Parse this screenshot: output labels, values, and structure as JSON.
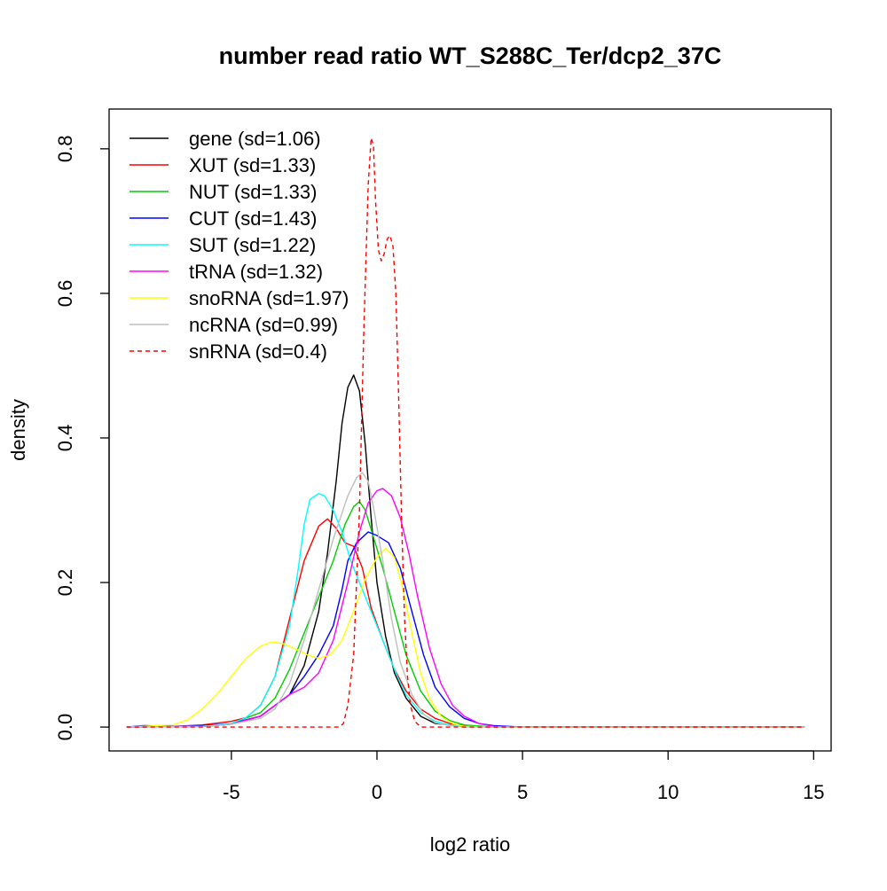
{
  "chart_data": {
    "type": "line",
    "title": "number read ratio WT_S288C_Ter/dcp2_37C",
    "xlabel": "log2 ratio",
    "ylabel": "density",
    "xlim": [
      -9.2,
      15.6
    ],
    "ylim": [
      -0.033,
      0.855
    ],
    "x_ticks": [
      -5,
      0,
      5,
      10,
      15
    ],
    "x_tick_labels": [
      "-5",
      "0",
      "5",
      "10",
      "15"
    ],
    "y_ticks": [
      0.0,
      0.2,
      0.4,
      0.6,
      0.8
    ],
    "y_tick_labels": [
      "0.0",
      "0.2",
      "0.4",
      "0.6",
      "0.8"
    ],
    "grid": false,
    "legend_position": "top-left",
    "series": [
      {
        "name": "gene (sd=1.06)",
        "color": "#000000",
        "dashed": false,
        "points": [
          [
            -8.6,
            0
          ],
          [
            -6.0,
            0.001
          ],
          [
            -5.0,
            0.004
          ],
          [
            -4.0,
            0.015
          ],
          [
            -3.0,
            0.045
          ],
          [
            -2.5,
            0.085
          ],
          [
            -2.0,
            0.16
          ],
          [
            -1.7,
            0.24
          ],
          [
            -1.4,
            0.34
          ],
          [
            -1.2,
            0.42
          ],
          [
            -1.0,
            0.47
          ],
          [
            -0.8,
            0.487
          ],
          [
            -0.6,
            0.465
          ],
          [
            -0.4,
            0.39
          ],
          [
            -0.2,
            0.29
          ],
          [
            0.0,
            0.2
          ],
          [
            0.3,
            0.125
          ],
          [
            0.6,
            0.075
          ],
          [
            1.0,
            0.04
          ],
          [
            1.5,
            0.015
          ],
          [
            2.0,
            0.005
          ],
          [
            3.0,
            0.001
          ],
          [
            4.0,
            0
          ],
          [
            14.7,
            0
          ]
        ]
      },
      {
        "name": "XUT (sd=1.33)",
        "color": "#ff0000",
        "dashed": false,
        "points": [
          [
            -8.6,
            0
          ],
          [
            -7.0,
            0.001
          ],
          [
            -6.0,
            0.003
          ],
          [
            -5.0,
            0.008
          ],
          [
            -4.5,
            0.013
          ],
          [
            -4.0,
            0.03
          ],
          [
            -3.5,
            0.07
          ],
          [
            -3.0,
            0.15
          ],
          [
            -2.5,
            0.23
          ],
          [
            -2.0,
            0.278
          ],
          [
            -1.7,
            0.288
          ],
          [
            -1.4,
            0.275
          ],
          [
            -1.1,
            0.255
          ],
          [
            -0.8,
            0.25
          ],
          [
            -0.5,
            0.22
          ],
          [
            -0.2,
            0.165
          ],
          [
            0.2,
            0.12
          ],
          [
            0.6,
            0.08
          ],
          [
            1.0,
            0.05
          ],
          [
            1.5,
            0.025
          ],
          [
            2.0,
            0.012
          ],
          [
            2.5,
            0.005
          ],
          [
            3.0,
            0.002
          ],
          [
            4.0,
            0
          ],
          [
            14.7,
            0
          ]
        ]
      },
      {
        "name": "NUT (sd=1.33)",
        "color": "#00cd00",
        "dashed": false,
        "points": [
          [
            -8.6,
            0
          ],
          [
            -6.0,
            0.001
          ],
          [
            -5.0,
            0.005
          ],
          [
            -4.0,
            0.02
          ],
          [
            -3.5,
            0.04
          ],
          [
            -3.0,
            0.08
          ],
          [
            -2.5,
            0.13
          ],
          [
            -2.0,
            0.18
          ],
          [
            -1.5,
            0.23
          ],
          [
            -1.1,
            0.28
          ],
          [
            -0.8,
            0.305
          ],
          [
            -0.6,
            0.312
          ],
          [
            -0.4,
            0.3
          ],
          [
            -0.1,
            0.26
          ],
          [
            0.2,
            0.22
          ],
          [
            0.6,
            0.16
          ],
          [
            1.0,
            0.1
          ],
          [
            1.5,
            0.05
          ],
          [
            2.0,
            0.022
          ],
          [
            2.5,
            0.009
          ],
          [
            3.0,
            0.003
          ],
          [
            4.0,
            0
          ],
          [
            14.7,
            0
          ]
        ]
      },
      {
        "name": "CUT (sd=1.43)",
        "color": "#0000ff",
        "dashed": false,
        "points": [
          [
            -8.6,
            0
          ],
          [
            -8.0,
            0.002
          ],
          [
            -7.0,
            0.001
          ],
          [
            -6.0,
            0.002
          ],
          [
            -5.0,
            0.005
          ],
          [
            -4.0,
            0.015
          ],
          [
            -3.0,
            0.045
          ],
          [
            -2.5,
            0.07
          ],
          [
            -2.0,
            0.1
          ],
          [
            -1.5,
            0.14
          ],
          [
            -1.2,
            0.19
          ],
          [
            -1.0,
            0.23
          ],
          [
            -0.7,
            0.255
          ],
          [
            -0.3,
            0.27
          ],
          [
            0.0,
            0.265
          ],
          [
            0.4,
            0.255
          ],
          [
            0.8,
            0.22
          ],
          [
            1.2,
            0.16
          ],
          [
            1.6,
            0.1
          ],
          [
            2.0,
            0.055
          ],
          [
            2.5,
            0.028
          ],
          [
            3.0,
            0.012
          ],
          [
            3.5,
            0.005
          ],
          [
            4.0,
            0.002
          ],
          [
            5.0,
            0
          ],
          [
            14.7,
            0
          ]
        ]
      },
      {
        "name": "SUT (sd=1.22)",
        "color": "#00ffff",
        "dashed": false,
        "points": [
          [
            -8.6,
            0
          ],
          [
            -6.0,
            0.001
          ],
          [
            -5.0,
            0.005
          ],
          [
            -4.5,
            0.013
          ],
          [
            -4.0,
            0.03
          ],
          [
            -3.5,
            0.07
          ],
          [
            -3.0,
            0.14
          ],
          [
            -2.7,
            0.22
          ],
          [
            -2.5,
            0.28
          ],
          [
            -2.3,
            0.315
          ],
          [
            -2.0,
            0.323
          ],
          [
            -1.8,
            0.32
          ],
          [
            -1.5,
            0.3
          ],
          [
            -1.2,
            0.27
          ],
          [
            -0.9,
            0.23
          ],
          [
            -0.5,
            0.19
          ],
          [
            -0.1,
            0.15
          ],
          [
            0.3,
            0.11
          ],
          [
            0.7,
            0.07
          ],
          [
            1.0,
            0.045
          ],
          [
            1.5,
            0.02
          ],
          [
            2.0,
            0.008
          ],
          [
            2.5,
            0.003
          ],
          [
            3.0,
            0.001
          ],
          [
            4.0,
            0
          ],
          [
            14.7,
            0
          ]
        ]
      },
      {
        "name": "tRNA (sd=1.32)",
        "color": "#ff00ff",
        "dashed": false,
        "points": [
          [
            -8.6,
            0
          ],
          [
            -6.0,
            0.001
          ],
          [
            -5.0,
            0.004
          ],
          [
            -4.0,
            0.015
          ],
          [
            -3.5,
            0.03
          ],
          [
            -3.0,
            0.045
          ],
          [
            -2.5,
            0.055
          ],
          [
            -2.0,
            0.075
          ],
          [
            -1.5,
            0.12
          ],
          [
            -1.0,
            0.2
          ],
          [
            -0.6,
            0.27
          ],
          [
            -0.3,
            0.31
          ],
          [
            0.0,
            0.327
          ],
          [
            0.2,
            0.33
          ],
          [
            0.5,
            0.32
          ],
          [
            0.8,
            0.29
          ],
          [
            1.1,
            0.24
          ],
          [
            1.4,
            0.18
          ],
          [
            1.8,
            0.11
          ],
          [
            2.2,
            0.06
          ],
          [
            2.6,
            0.03
          ],
          [
            3.0,
            0.015
          ],
          [
            3.5,
            0.005
          ],
          [
            4.0,
            0.001
          ],
          [
            5.0,
            0
          ],
          [
            14.7,
            0
          ]
        ]
      },
      {
        "name": "snoRNA (sd=1.97)",
        "color": "#ffff00",
        "dashed": false,
        "points": [
          [
            -8.6,
            0
          ],
          [
            -7.0,
            0.003
          ],
          [
            -6.5,
            0.01
          ],
          [
            -6.0,
            0.025
          ],
          [
            -5.5,
            0.045
          ],
          [
            -5.0,
            0.07
          ],
          [
            -4.5,
            0.095
          ],
          [
            -4.0,
            0.112
          ],
          [
            -3.6,
            0.118
          ],
          [
            -3.2,
            0.115
          ],
          [
            -2.8,
            0.108
          ],
          [
            -2.4,
            0.1
          ],
          [
            -2.0,
            0.095
          ],
          [
            -1.6,
            0.1
          ],
          [
            -1.2,
            0.12
          ],
          [
            -0.8,
            0.16
          ],
          [
            -0.4,
            0.205
          ],
          [
            0.0,
            0.235
          ],
          [
            0.3,
            0.247
          ],
          [
            0.6,
            0.235
          ],
          [
            0.9,
            0.19
          ],
          [
            1.2,
            0.13
          ],
          [
            1.5,
            0.075
          ],
          [
            1.8,
            0.04
          ],
          [
            2.2,
            0.015
          ],
          [
            2.6,
            0.005
          ],
          [
            3.0,
            0.001
          ],
          [
            4.0,
            0
          ],
          [
            14.7,
            0
          ]
        ]
      },
      {
        "name": "ncRNA (sd=0.99)",
        "color": "#bebebe",
        "dashed": false,
        "points": [
          [
            -8.6,
            0
          ],
          [
            -6.0,
            0.001
          ],
          [
            -5.0,
            0.004
          ],
          [
            -4.0,
            0.012
          ],
          [
            -3.5,
            0.025
          ],
          [
            -3.0,
            0.06
          ],
          [
            -2.5,
            0.12
          ],
          [
            -2.0,
            0.19
          ],
          [
            -1.5,
            0.26
          ],
          [
            -1.0,
            0.32
          ],
          [
            -0.7,
            0.345
          ],
          [
            -0.5,
            0.352
          ],
          [
            -0.3,
            0.34
          ],
          [
            -0.1,
            0.3
          ],
          [
            0.2,
            0.23
          ],
          [
            0.5,
            0.15
          ],
          [
            0.8,
            0.09
          ],
          [
            1.2,
            0.045
          ],
          [
            1.6,
            0.018
          ],
          [
            2.0,
            0.006
          ],
          [
            2.5,
            0.002
          ],
          [
            3.0,
            0
          ],
          [
            14.7,
            0
          ]
        ]
      },
      {
        "name": "snRNA (sd=0.4)",
        "color": "#ff0000",
        "dashed": true,
        "points": [
          [
            -8.6,
            0
          ],
          [
            -1.3,
            0
          ],
          [
            -1.15,
            0.005
          ],
          [
            -1.0,
            0.03
          ],
          [
            -0.8,
            0.1
          ],
          [
            -0.6,
            0.3
          ],
          [
            -0.45,
            0.55
          ],
          [
            -0.3,
            0.75
          ],
          [
            -0.2,
            0.815
          ],
          [
            -0.12,
            0.805
          ],
          [
            -0.05,
            0.73
          ],
          [
            0.05,
            0.66
          ],
          [
            0.15,
            0.645
          ],
          [
            0.25,
            0.655
          ],
          [
            0.35,
            0.675
          ],
          [
            0.45,
            0.68
          ],
          [
            0.55,
            0.665
          ],
          [
            0.65,
            0.6
          ],
          [
            0.75,
            0.45
          ],
          [
            0.85,
            0.28
          ],
          [
            0.95,
            0.15
          ],
          [
            1.05,
            0.07
          ],
          [
            1.15,
            0.03
          ],
          [
            1.3,
            0.008
          ],
          [
            1.5,
            0
          ],
          [
            14.7,
            0
          ]
        ]
      }
    ]
  }
}
